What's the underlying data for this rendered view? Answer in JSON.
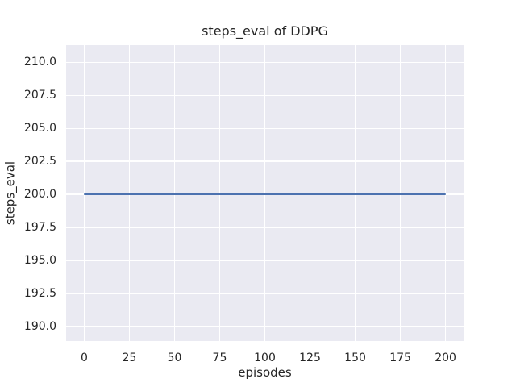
{
  "chart_data": {
    "type": "line",
    "title": "steps_eval of DDPG",
    "xlabel": "episodes",
    "ylabel": "steps_eval",
    "xlim": [
      -10,
      210
    ],
    "ylim": [
      188.9,
      211.3
    ],
    "xticks": [
      0,
      25,
      50,
      75,
      100,
      125,
      150,
      175,
      200
    ],
    "yticks": [
      190.0,
      192.5,
      195.0,
      197.5,
      200.0,
      202.5,
      205.0,
      207.5,
      210.0
    ],
    "ytick_decimals": 1,
    "grid": true,
    "legend": "none",
    "plot_background": "#EAEAF2",
    "grid_color": "#FFFFFF",
    "text_color": "#262626",
    "series": [
      {
        "name": "DDPG",
        "color": "#4C72B0",
        "linewidth": 2.2,
        "x": [
          0,
          200
        ],
        "y": [
          200.0,
          200.0
        ]
      }
    ]
  }
}
